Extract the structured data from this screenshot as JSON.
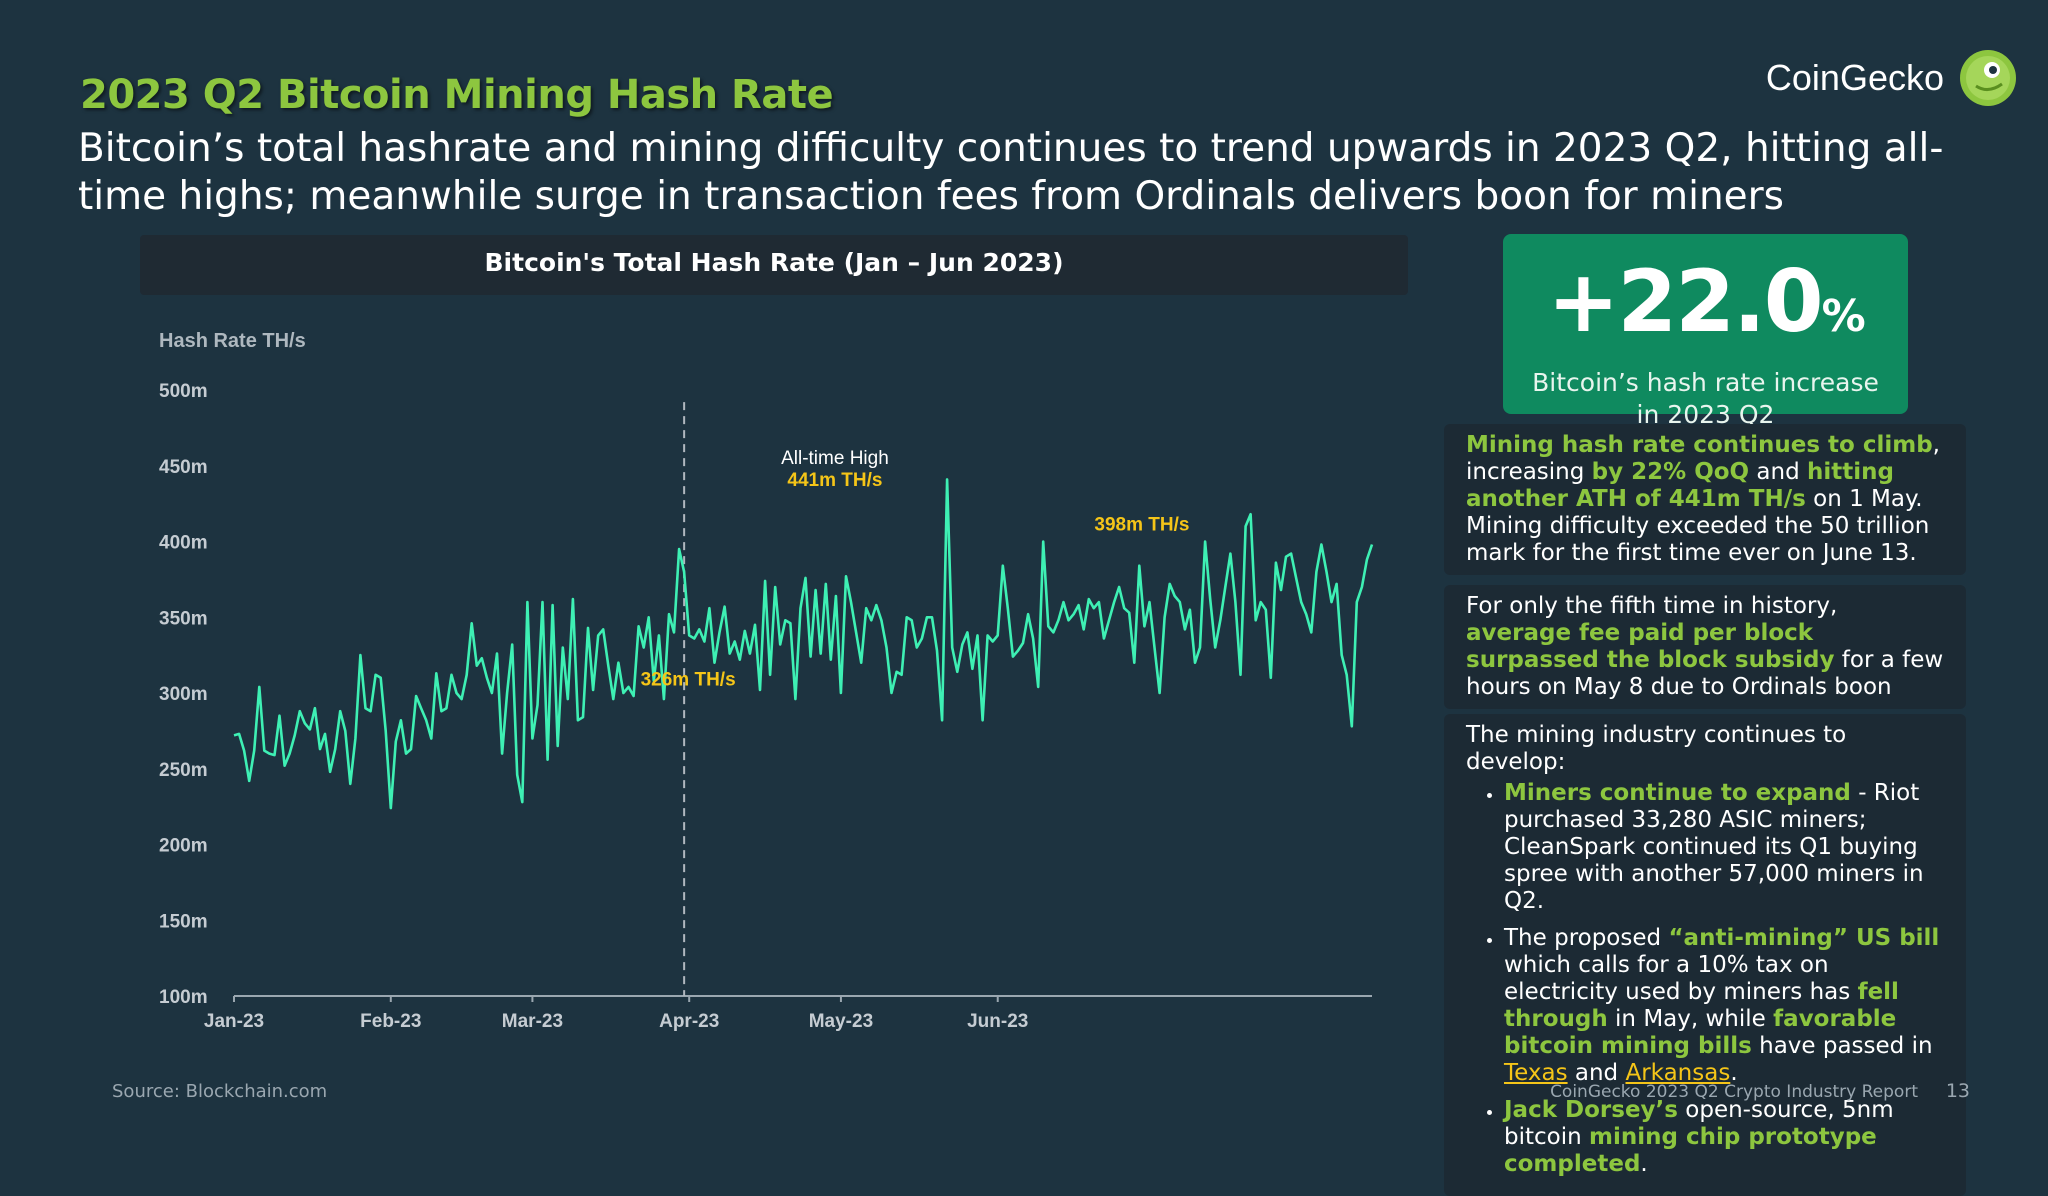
{
  "header": {
    "title": "2023 Q2 Bitcoin Mining Hash Rate",
    "subtitle": "Bitcoin’s total hashrate and mining difficulty continues to trend upwards in 2023 Q2, hitting all-time highs; meanwhile surge in transaction fees from Ordinals delivers boon for miners",
    "logo_text": "CoinGecko"
  },
  "colors": {
    "background": "#1d3340",
    "accent_green": "#8dc63f",
    "line": "#3ef0b4",
    "annotation_yellow": "#f5c518",
    "stat_box": "#0f8a5f"
  },
  "stat": {
    "value": "+22.0",
    "unit": "%",
    "label_line1": "Bitcoin’s hash rate increase",
    "label_line2": "in 2023 Q2"
  },
  "cards": {
    "c1": {
      "hl1": "Mining hash rate continues to climb",
      "t1": ", increasing ",
      "hl2": "by 22% QoQ",
      "t2": " and ",
      "hl3": "hitting another ATH of 441m TH/s",
      "t3": " on 1 May. Mining difficulty exceeded the 50 trillion mark for the first time ever on June 13."
    },
    "c2": {
      "t1": "For only the fifth time in history, ",
      "hl1": "average fee paid per block surpassed the block subsidy",
      "t2": " for a few hours on May 8 due to Ordinals boon"
    },
    "c3": {
      "intro": "The mining industry continues to develop:",
      "b1_hl": "Miners continue to expand",
      "b1_t": " - Riot purchased 33,280 ASIC miners; CleanSpark continued its Q1 buying spree with another 57,000 miners in Q2.",
      "b2_t1": "The proposed ",
      "b2_hl1": "“anti-mining” US bill",
      "b2_t2": " which calls for a 10% tax on electricity used by miners has ",
      "b2_hl2": "fell through",
      "b2_t3": " in May, while ",
      "b2_hl3": "favorable bitcoin mining bills",
      "b2_t4": " have passed in ",
      "b2_link1": "Texas",
      "b2_t5": " and ",
      "b2_link2": "Arkansas",
      "b2_t6": ".",
      "b3_hl1": "Jack Dorsey’s",
      "b3_t": " open-source, 5nm bitcoin ",
      "b3_hl2": "mining chip prototype completed",
      "b3_t2": "."
    }
  },
  "footer": {
    "source": "Source: Blockchain.com",
    "report": "CoinGecko 2023 Q2 Crypto Industry Report",
    "page": "13"
  },
  "chart_data": {
    "type": "line",
    "title": "Bitcoin's Total Hash Rate (Jan – Jun 2023)",
    "ylabel": "Hash Rate TH/s",
    "xlabel": "",
    "ylim": [
      100,
      500
    ],
    "yticks": [
      100,
      150,
      200,
      250,
      300,
      350,
      400,
      450,
      500
    ],
    "ytick_labels": [
      "100m",
      "150m",
      "200m",
      "250m",
      "300m",
      "350m",
      "400m",
      "450m",
      "500m"
    ],
    "x_tick_labels": [
      "Jan-23",
      "Feb-23",
      "Mar-23",
      "Apr-23",
      "May-23",
      "Jun-23"
    ],
    "x_tick_days": [
      0,
      31,
      59,
      90,
      120,
      151
    ],
    "grid": false,
    "marker_line": {
      "day": 89,
      "label": "326m TH/s"
    },
    "annotations": [
      {
        "label_top": "All-time High",
        "label_value": "441m TH/s",
        "day": 120
      },
      {
        "label_value": "398m TH/s",
        "day": 180
      }
    ],
    "series": [
      {
        "values": [
          272,
          273,
          262,
          242,
          262,
          304,
          262,
          260,
          259,
          285,
          252,
          260,
          272,
          288,
          280,
          276,
          290,
          263,
          273,
          248,
          263,
          288,
          275,
          240,
          270,
          325,
          290,
          288,
          312,
          310,
          275,
          224,
          268,
          282,
          260,
          263,
          298,
          290,
          282,
          270,
          313,
          288,
          290,
          312,
          300,
          296,
          312,
          346,
          318,
          323,
          310,
          300,
          326,
          260,
          300,
          332,
          246,
          228,
          360,
          270,
          292,
          360,
          256,
          358,
          265,
          330,
          296,
          362,
          282,
          284,
          343,
          302,
          338,
          342,
          318,
          296,
          320,
          300,
          304,
          298,
          344,
          330,
          350,
          308,
          338,
          296,
          352,
          340,
          395,
          380,
          338,
          336,
          342,
          334,
          356,
          320,
          340,
          357,
          326,
          334,
          322,
          341,
          326,
          345,
          302,
          374,
          312,
          370,
          332,
          348,
          346,
          296,
          356,
          376,
          324,
          368,
          326,
          372,
          322,
          364,
          300,
          377,
          360,
          340,
          320,
          356,
          348,
          358,
          348,
          330,
          300,
          314,
          312,
          350,
          348,
          330,
          336,
          350,
          350,
          328,
          282,
          441,
          330,
          314,
          332,
          340,
          316,
          338,
          282,
          338,
          334,
          338,
          384,
          356,
          324,
          328,
          333,
          352,
          336,
          304,
          400,
          344,
          340,
          348,
          360,
          348,
          352,
          358,
          342,
          362,
          356,
          360,
          336,
          348,
          360,
          370,
          356,
          353,
          320,
          384,
          344,
          360,
          330,
          300,
          350,
          372,
          364,
          360,
          342,
          355,
          320,
          330,
          400,
          362,
          330,
          348,
          370,
          392,
          360,
          312,
          410,
          418,
          348,
          360,
          355,
          310,
          386,
          368,
          390,
          392,
          376,
          360,
          352,
          340,
          380,
          398,
          380,
          360,
          372,
          325,
          312,
          278,
          360,
          370,
          388,
          398
        ]
      }
    ]
  }
}
